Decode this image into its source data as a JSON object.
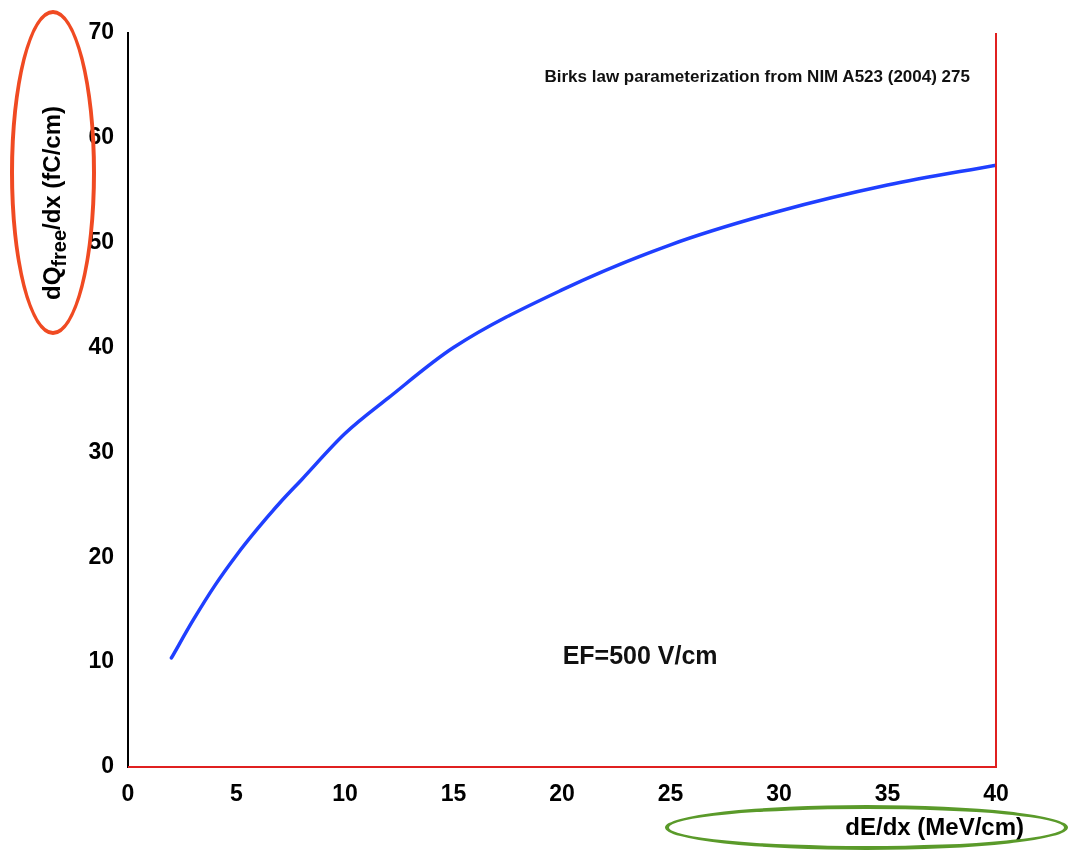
{
  "chart_data": {
    "type": "line",
    "xlabel": "dE/dx (MeV/cm)",
    "ylabel": "dQ$_{free}$/dx (fC/cm)",
    "annotations": [
      "Birks law parameterization from NIM A523 (2004) 275",
      "EF=500 V/cm"
    ],
    "x": [
      2,
      3,
      4,
      5,
      6,
      7,
      8,
      10,
      12,
      15,
      20,
      25,
      30,
      35,
      40
    ],
    "series": [
      {
        "color": "#1f3fff",
        "values": [
          10.4,
          14.0,
          17.3,
          20.2,
          22.8,
          25.2,
          27.4,
          31.8,
          35.2,
          40.0,
          45.5,
          49.8,
          53.0,
          55.5,
          57.4
        ]
      }
    ],
    "xlim": [
      0,
      40
    ],
    "xticks": [
      0,
      5,
      10,
      15,
      20,
      25,
      30,
      35,
      40
    ],
    "ylim": [
      0,
      70
    ],
    "yticks": [
      0,
      10,
      20,
      30,
      40,
      50,
      60,
      70
    ],
    "grid": false,
    "legend": false,
    "marker": "none",
    "line_style": "solid"
  }
}
